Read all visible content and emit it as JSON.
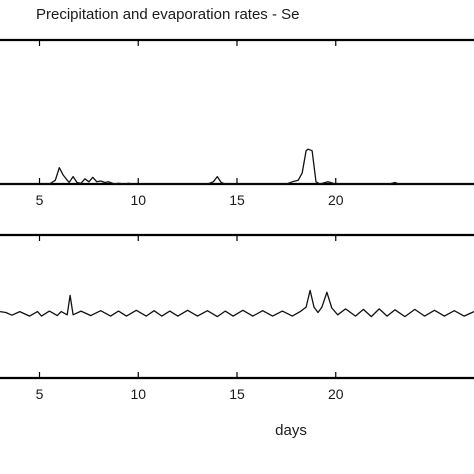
{
  "chart_data": [
    {
      "type": "line",
      "title": "Precipitation and evaporation rates - Se",
      "xlabel": "",
      "ylabel": "",
      "xlim": [
        3,
        27
      ],
      "ylim": [
        0,
        1
      ],
      "xticks": [
        5,
        10,
        15,
        20
      ],
      "xtick_labels": [
        "5",
        "10",
        "15",
        "20"
      ],
      "grid": false,
      "series": [
        {
          "x": [
            3,
            5.5,
            5.8,
            6.0,
            6.2,
            6.5,
            6.7,
            6.9,
            7.1,
            7.3,
            7.5,
            7.7,
            7.9,
            8.1,
            8.3,
            8.5,
            8.8,
            9.0,
            9.3,
            9.5,
            9.7,
            10.0,
            13.5,
            13.8,
            14.0,
            14.2,
            14.4,
            17.5,
            17.8,
            18.1,
            18.3,
            18.5,
            18.6,
            18.8,
            19.0,
            19.2,
            19.6,
            20.0,
            22.7,
            23.0,
            23.2,
            27
          ],
          "y": [
            0,
            0,
            0.05,
            0.22,
            0.12,
            0.02,
            0.1,
            0.02,
            0.01,
            0.07,
            0.03,
            0.09,
            0.03,
            0.04,
            0.02,
            0.03,
            0.0,
            0.01,
            0.0,
            0.01,
            0.0,
            0.0,
            0.0,
            0.03,
            0.1,
            0.02,
            0.0,
            0.0,
            0.03,
            0.05,
            0.15,
            0.45,
            0.47,
            0.45,
            0.03,
            0.0,
            0.03,
            0.0,
            0.0,
            0.02,
            0.0,
            0.0
          ]
        }
      ]
    },
    {
      "type": "line",
      "title": "",
      "xlabel": "days",
      "ylabel": "",
      "xlim": [
        3,
        27
      ],
      "ylim": [
        0,
        1
      ],
      "xticks": [
        5,
        10,
        15,
        20
      ],
      "xtick_labels": [
        "5",
        "10",
        "15",
        "20"
      ],
      "grid": false,
      "series": [
        {
          "x": [
            3.0,
            3.3,
            3.6,
            4.0,
            4.5,
            4.9,
            5.1,
            5.5,
            5.9,
            6.1,
            6.4,
            6.55,
            6.7,
            7.1,
            7.6,
            8.1,
            8.6,
            9.0,
            9.4,
            9.9,
            10.4,
            10.8,
            11.2,
            11.6,
            12.0,
            12.5,
            13.0,
            13.5,
            14.0,
            14.4,
            14.8,
            15.3,
            15.8,
            16.3,
            16.8,
            17.3,
            17.8,
            18.2,
            18.5,
            18.7,
            18.9,
            19.1,
            19.3,
            19.55,
            19.8,
            20.1,
            20.5,
            21.0,
            21.4,
            21.8,
            22.2,
            22.6,
            23.0,
            23.5,
            24.0,
            24.5,
            25.0,
            25.5,
            26.0,
            26.5,
            27.0
          ],
          "y": [
            0.52,
            0.5,
            0.44,
            0.52,
            0.42,
            0.52,
            0.42,
            0.53,
            0.43,
            0.52,
            0.45,
            0.88,
            0.45,
            0.53,
            0.43,
            0.54,
            0.42,
            0.53,
            0.42,
            0.55,
            0.42,
            0.54,
            0.42,
            0.53,
            0.42,
            0.55,
            0.42,
            0.54,
            0.41,
            0.53,
            0.42,
            0.55,
            0.42,
            0.54,
            0.42,
            0.53,
            0.42,
            0.52,
            0.62,
            0.99,
            0.62,
            0.5,
            0.62,
            0.95,
            0.6,
            0.45,
            0.58,
            0.42,
            0.57,
            0.41,
            0.58,
            0.42,
            0.56,
            0.41,
            0.57,
            0.42,
            0.55,
            0.42,
            0.54,
            0.42,
            0.52
          ]
        }
      ]
    }
  ]
}
